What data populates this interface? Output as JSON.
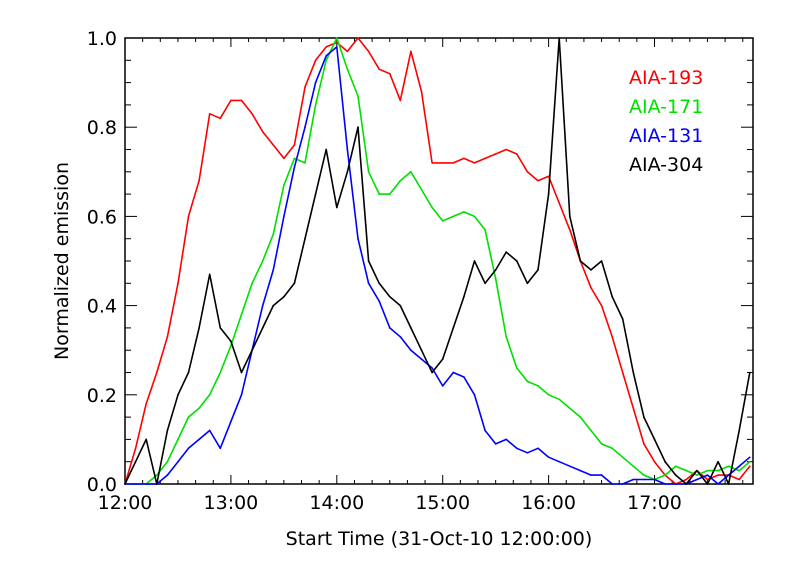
{
  "chart_data": {
    "type": "line",
    "title": "",
    "xlabel": "Start Time (31-Oct-10 12:00:00)",
    "ylabel": "Normalized emission",
    "x_unit": "hours after 12:00",
    "xlim": [
      0,
      5.93
    ],
    "ylim": [
      0,
      1.0
    ],
    "x_ticks": [
      {
        "value": 0,
        "label": "12:00"
      },
      {
        "value": 1,
        "label": "13:00"
      },
      {
        "value": 2,
        "label": "14:00"
      },
      {
        "value": 3,
        "label": "15:00"
      },
      {
        "value": 4,
        "label": "16:00"
      },
      {
        "value": 5,
        "label": "17:00"
      }
    ],
    "y_ticks": [
      {
        "value": 0.0,
        "label": "0.0"
      },
      {
        "value": 0.2,
        "label": "0.2"
      },
      {
        "value": 0.4,
        "label": "0.4"
      },
      {
        "value": 0.6,
        "label": "0.6"
      },
      {
        "value": 0.8,
        "label": "0.8"
      },
      {
        "value": 1.0,
        "label": "1.0"
      }
    ],
    "grid": false,
    "legend_position": "top-right",
    "series": [
      {
        "name": "AIA-193",
        "color": "#ff0000",
        "x": [
          0.0,
          0.1,
          0.2,
          0.3,
          0.4,
          0.5,
          0.6,
          0.7,
          0.8,
          0.9,
          1.0,
          1.1,
          1.2,
          1.3,
          1.4,
          1.5,
          1.6,
          1.7,
          1.8,
          1.9,
          2.0,
          2.1,
          2.2,
          2.3,
          2.4,
          2.5,
          2.6,
          2.7,
          2.8,
          2.9,
          3.0,
          3.1,
          3.2,
          3.3,
          3.4,
          3.5,
          3.6,
          3.7,
          3.8,
          3.9,
          4.0,
          4.1,
          4.2,
          4.3,
          4.4,
          4.5,
          4.6,
          4.7,
          4.8,
          4.9,
          5.0,
          5.1,
          5.2,
          5.3,
          5.4,
          5.5,
          5.6,
          5.7,
          5.8,
          5.9
        ],
        "values": [
          0.0,
          0.08,
          0.18,
          0.25,
          0.33,
          0.45,
          0.6,
          0.68,
          0.83,
          0.82,
          0.86,
          0.86,
          0.83,
          0.79,
          0.76,
          0.73,
          0.76,
          0.89,
          0.95,
          0.98,
          0.99,
          0.97,
          1.0,
          0.97,
          0.93,
          0.92,
          0.86,
          0.97,
          0.88,
          0.72,
          0.72,
          0.72,
          0.73,
          0.72,
          0.73,
          0.74,
          0.75,
          0.74,
          0.7,
          0.68,
          0.69,
          0.63,
          0.57,
          0.5,
          0.44,
          0.4,
          0.33,
          0.25,
          0.17,
          0.09,
          0.05,
          0.02,
          0.0,
          0.01,
          0.03,
          0.01,
          0.02,
          0.02,
          0.01,
          0.04
        ]
      },
      {
        "name": "AIA-171",
        "color": "#00e000",
        "x": [
          0.0,
          0.1,
          0.2,
          0.3,
          0.4,
          0.5,
          0.6,
          0.7,
          0.8,
          0.9,
          1.0,
          1.1,
          1.2,
          1.3,
          1.4,
          1.5,
          1.6,
          1.7,
          1.8,
          1.9,
          2.0,
          2.1,
          2.2,
          2.3,
          2.4,
          2.5,
          2.6,
          2.7,
          2.8,
          2.9,
          3.0,
          3.1,
          3.2,
          3.3,
          3.4,
          3.5,
          3.6,
          3.7,
          3.8,
          3.9,
          4.0,
          4.1,
          4.2,
          4.3,
          4.4,
          4.5,
          4.6,
          4.7,
          4.8,
          4.9,
          5.0,
          5.1,
          5.2,
          5.3,
          5.4,
          5.5,
          5.6,
          5.7,
          5.8,
          5.9
        ],
        "values": [
          0.0,
          0.0,
          0.0,
          0.02,
          0.05,
          0.1,
          0.15,
          0.17,
          0.2,
          0.25,
          0.31,
          0.38,
          0.45,
          0.5,
          0.56,
          0.67,
          0.73,
          0.72,
          0.85,
          0.95,
          1.0,
          0.93,
          0.87,
          0.7,
          0.65,
          0.65,
          0.68,
          0.7,
          0.66,
          0.62,
          0.59,
          0.6,
          0.61,
          0.6,
          0.57,
          0.46,
          0.33,
          0.26,
          0.23,
          0.22,
          0.2,
          0.19,
          0.17,
          0.15,
          0.12,
          0.09,
          0.08,
          0.06,
          0.04,
          0.02,
          0.01,
          0.02,
          0.04,
          0.03,
          0.02,
          0.03,
          0.03,
          0.04,
          0.03,
          0.05
        ]
      },
      {
        "name": "AIA-131",
        "color": "#0000ff",
        "x": [
          0.0,
          0.1,
          0.2,
          0.3,
          0.4,
          0.5,
          0.6,
          0.7,
          0.8,
          0.9,
          1.0,
          1.1,
          1.2,
          1.3,
          1.4,
          1.5,
          1.6,
          1.7,
          1.8,
          1.9,
          2.0,
          2.1,
          2.2,
          2.3,
          2.4,
          2.5,
          2.6,
          2.7,
          2.8,
          2.9,
          3.0,
          3.1,
          3.2,
          3.3,
          3.4,
          3.5,
          3.6,
          3.7,
          3.8,
          3.9,
          4.0,
          4.1,
          4.2,
          4.3,
          4.4,
          4.5,
          4.6,
          4.7,
          4.8,
          4.9,
          5.0,
          5.1,
          5.2,
          5.3,
          5.4,
          5.5,
          5.6,
          5.7,
          5.8,
          5.9
        ],
        "values": [
          0.0,
          0.0,
          0.0,
          0.0,
          0.02,
          0.05,
          0.08,
          0.1,
          0.12,
          0.08,
          0.14,
          0.2,
          0.3,
          0.4,
          0.48,
          0.6,
          0.71,
          0.8,
          0.9,
          0.96,
          0.98,
          0.75,
          0.55,
          0.45,
          0.41,
          0.35,
          0.33,
          0.3,
          0.28,
          0.26,
          0.22,
          0.25,
          0.24,
          0.2,
          0.12,
          0.09,
          0.1,
          0.08,
          0.07,
          0.08,
          0.06,
          0.05,
          0.04,
          0.03,
          0.02,
          0.02,
          0.0,
          0.0,
          0.01,
          0.01,
          0.01,
          0.0,
          0.0,
          0.0,
          0.01,
          0.02,
          0.0,
          0.02,
          0.04,
          0.06
        ]
      },
      {
        "name": "AIA-304",
        "color": "#000000",
        "x": [
          0.0,
          0.1,
          0.2,
          0.3,
          0.4,
          0.5,
          0.6,
          0.7,
          0.8,
          0.9,
          1.0,
          1.1,
          1.2,
          1.3,
          1.4,
          1.5,
          1.6,
          1.7,
          1.8,
          1.9,
          2.0,
          2.1,
          2.2,
          2.3,
          2.4,
          2.5,
          2.6,
          2.7,
          2.8,
          2.9,
          3.0,
          3.1,
          3.2,
          3.3,
          3.4,
          3.5,
          3.6,
          3.7,
          3.8,
          3.9,
          4.0,
          4.1,
          4.2,
          4.3,
          4.4,
          4.5,
          4.6,
          4.7,
          4.8,
          4.9,
          5.0,
          5.1,
          5.2,
          5.3,
          5.4,
          5.5,
          5.6,
          5.7,
          5.8,
          5.9
        ],
        "values": [
          0.0,
          0.05,
          0.1,
          0.0,
          0.12,
          0.2,
          0.25,
          0.35,
          0.47,
          0.35,
          0.32,
          0.25,
          0.3,
          0.35,
          0.4,
          0.42,
          0.45,
          0.55,
          0.65,
          0.75,
          0.62,
          0.7,
          0.8,
          0.5,
          0.45,
          0.42,
          0.4,
          0.35,
          0.3,
          0.25,
          0.28,
          0.35,
          0.42,
          0.5,
          0.45,
          0.48,
          0.52,
          0.5,
          0.45,
          0.48,
          0.65,
          1.0,
          0.6,
          0.5,
          0.48,
          0.5,
          0.42,
          0.37,
          0.25,
          0.15,
          0.1,
          0.05,
          0.02,
          0.0,
          0.03,
          0.0,
          0.05,
          0.0,
          0.12,
          0.25
        ]
      }
    ]
  }
}
